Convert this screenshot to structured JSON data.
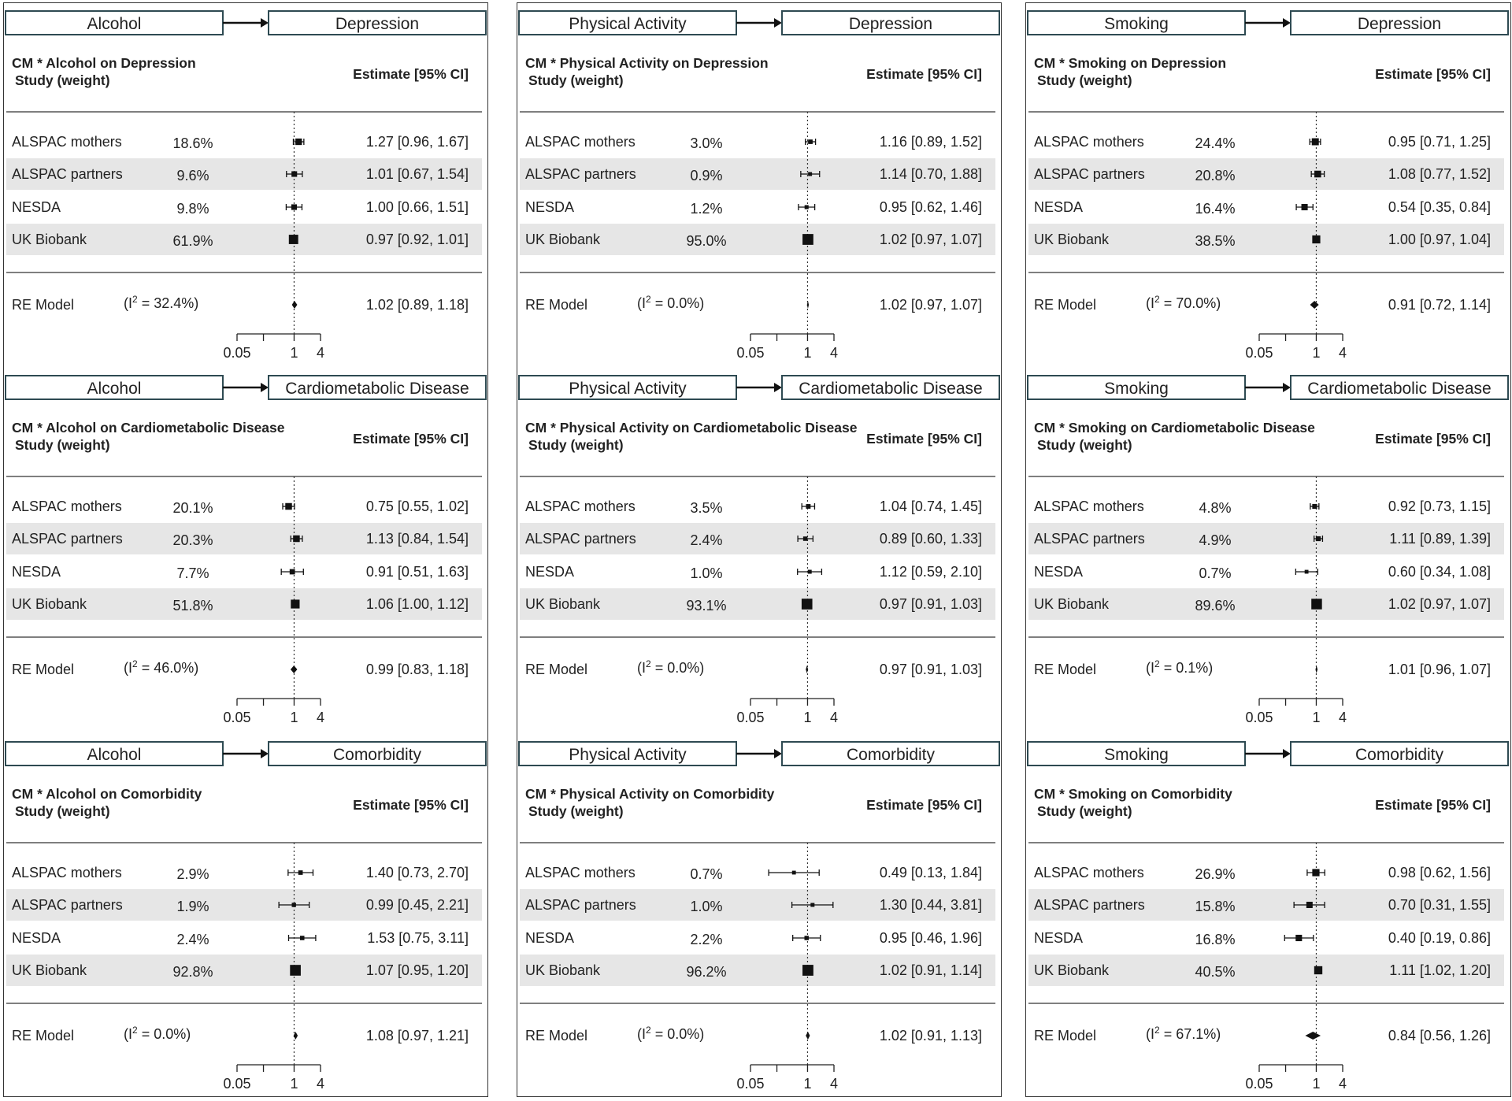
{
  "chart_data": [
    {
      "type": "forest",
      "exposure": "Alcohol",
      "outcome": "Depression",
      "title": "CM * Alcohol on Depression",
      "study_header": "Study (weight)",
      "estimate_header": "Estimate [95% CI]",
      "studies": [
        {
          "name": "ALSPAC mothers",
          "weight": "18.6%",
          "est": 1.27,
          "lo": 0.96,
          "hi": 1.67,
          "label": "1.27 [0.96, 1.67]"
        },
        {
          "name": "ALSPAC partners",
          "weight": "9.6%",
          "est": 1.01,
          "lo": 0.67,
          "hi": 1.54,
          "label": "1.01 [0.67, 1.54]"
        },
        {
          "name": "NESDA",
          "weight": "9.8%",
          "est": 1.0,
          "lo": 0.66,
          "hi": 1.51,
          "label": "1.00 [0.66, 1.51]"
        },
        {
          "name": "UK Biobank",
          "weight": "61.9%",
          "est": 0.97,
          "lo": 0.92,
          "hi": 1.01,
          "label": "0.97 [0.92, 1.01]"
        }
      ],
      "re_model": {
        "name": "RE Model",
        "i2": "= 32.4%)",
        "est": 1.02,
        "lo": 0.89,
        "hi": 1.18,
        "label": "1.02 [0.89, 1.18]"
      },
      "ticks": [
        "0.05",
        "1",
        "4"
      ]
    },
    {
      "type": "forest",
      "exposure": "Alcohol",
      "outcome": "Cardiometabolic Disease",
      "title": "CM * Alcohol on Cardiometabolic Disease",
      "study_header": "Study (weight)",
      "estimate_header": "Estimate [95% CI]",
      "studies": [
        {
          "name": "ALSPAC mothers",
          "weight": "20.1%",
          "est": 0.75,
          "lo": 0.55,
          "hi": 1.02,
          "label": "0.75 [0.55, 1.02]"
        },
        {
          "name": "ALSPAC partners",
          "weight": "20.3%",
          "est": 1.13,
          "lo": 0.84,
          "hi": 1.54,
          "label": "1.13 [0.84, 1.54]"
        },
        {
          "name": "NESDA",
          "weight": "7.7%",
          "est": 0.91,
          "lo": 0.51,
          "hi": 1.63,
          "label": "0.91 [0.51, 1.63]"
        },
        {
          "name": "UK Biobank",
          "weight": "51.8%",
          "est": 1.06,
          "lo": 1.0,
          "hi": 1.12,
          "label": "1.06 [1.00, 1.12]"
        }
      ],
      "re_model": {
        "name": "RE Model",
        "i2": "= 46.0%)",
        "est": 0.99,
        "lo": 0.83,
        "hi": 1.18,
        "label": "0.99 [0.83, 1.18]"
      },
      "ticks": [
        "0.05",
        "1",
        "4"
      ]
    },
    {
      "type": "forest",
      "exposure": "Alcohol",
      "outcome": "Comorbidity",
      "title": "CM * Alcohol on Comorbidity",
      "study_header": "Study (weight)",
      "estimate_header": "Estimate [95% CI]",
      "studies": [
        {
          "name": "ALSPAC mothers",
          "weight": "2.9%",
          "est": 1.4,
          "lo": 0.73,
          "hi": 2.7,
          "label": "1.40 [0.73, 2.70]"
        },
        {
          "name": "ALSPAC partners",
          "weight": "1.9%",
          "est": 0.99,
          "lo": 0.45,
          "hi": 2.21,
          "label": "0.99 [0.45, 2.21]"
        },
        {
          "name": "NESDA",
          "weight": "2.4%",
          "est": 1.53,
          "lo": 0.75,
          "hi": 3.11,
          "label": "1.53 [0.75, 3.11]"
        },
        {
          "name": "UK Biobank",
          "weight": "92.8%",
          "est": 1.07,
          "lo": 0.95,
          "hi": 1.2,
          "label": "1.07 [0.95, 1.20]"
        }
      ],
      "re_model": {
        "name": "RE Model",
        "i2": "= 0.0%)",
        "est": 1.08,
        "lo": 0.97,
        "hi": 1.21,
        "label": "1.08 [0.97, 1.21]"
      },
      "ticks": [
        "0.05",
        "1",
        "4"
      ]
    },
    {
      "type": "forest",
      "exposure": "Physical Activity",
      "outcome": "Depression",
      "title": "CM * Physical Activity on Depression",
      "study_header": "Study (weight)",
      "estimate_header": "Estimate [95% CI]",
      "studies": [
        {
          "name": "ALSPAC mothers",
          "weight": "3.0%",
          "est": 1.16,
          "lo": 0.89,
          "hi": 1.52,
          "label": "1.16 [0.89, 1.52]"
        },
        {
          "name": "ALSPAC partners",
          "weight": "0.9%",
          "est": 1.14,
          "lo": 0.7,
          "hi": 1.88,
          "label": "1.14 [0.70, 1.88]"
        },
        {
          "name": "NESDA",
          "weight": "1.2%",
          "est": 0.95,
          "lo": 0.62,
          "hi": 1.46,
          "label": "0.95 [0.62, 1.46]"
        },
        {
          "name": "UK Biobank",
          "weight": "95.0%",
          "est": 1.02,
          "lo": 0.97,
          "hi": 1.07,
          "label": "1.02 [0.97, 1.07]"
        }
      ],
      "re_model": {
        "name": "RE Model",
        "i2": "= 0.0%)",
        "est": 1.02,
        "lo": 0.97,
        "hi": 1.07,
        "label": "1.02 [0.97, 1.07]"
      },
      "ticks": [
        "0.05",
        "1",
        "4"
      ]
    },
    {
      "type": "forest",
      "exposure": "Physical Activity",
      "outcome": "Cardiometabolic Disease",
      "title": "CM * Physical Activity on Cardiometabolic Disease",
      "study_header": "Study (weight)",
      "estimate_header": "Estimate [95% CI]",
      "studies": [
        {
          "name": "ALSPAC mothers",
          "weight": "3.5%",
          "est": 1.04,
          "lo": 0.74,
          "hi": 1.45,
          "label": "1.04 [0.74, 1.45]"
        },
        {
          "name": "ALSPAC partners",
          "weight": "2.4%",
          "est": 0.89,
          "lo": 0.6,
          "hi": 1.33,
          "label": "0.89 [0.60, 1.33]"
        },
        {
          "name": "NESDA",
          "weight": "1.0%",
          "est": 1.12,
          "lo": 0.59,
          "hi": 2.1,
          "label": "1.12 [0.59, 2.10]"
        },
        {
          "name": "UK Biobank",
          "weight": "93.1%",
          "est": 0.97,
          "lo": 0.91,
          "hi": 1.03,
          "label": "0.97 [0.91, 1.03]"
        }
      ],
      "re_model": {
        "name": "RE Model",
        "i2": "= 0.0%)",
        "est": 0.97,
        "lo": 0.91,
        "hi": 1.03,
        "label": "0.97 [0.91, 1.03]"
      },
      "ticks": [
        "0.05",
        "1",
        "4"
      ]
    },
    {
      "type": "forest",
      "exposure": "Physical Activity",
      "outcome": "Comorbidity",
      "title": "CM * Physical Activity on Comorbidity",
      "study_header": "Study (weight)",
      "estimate_header": "Estimate [95% CI]",
      "studies": [
        {
          "name": "ALSPAC mothers",
          "weight": "0.7%",
          "est": 0.49,
          "lo": 0.13,
          "hi": 1.84,
          "label": "0.49 [0.13, 1.84]"
        },
        {
          "name": "ALSPAC partners",
          "weight": "1.0%",
          "est": 1.3,
          "lo": 0.44,
          "hi": 3.81,
          "label": "1.30 [0.44, 3.81]"
        },
        {
          "name": "NESDA",
          "weight": "2.2%",
          "est": 0.95,
          "lo": 0.46,
          "hi": 1.96,
          "label": "0.95 [0.46, 1.96]"
        },
        {
          "name": "UK Biobank",
          "weight": "96.2%",
          "est": 1.02,
          "lo": 0.91,
          "hi": 1.14,
          "label": "1.02 [0.91, 1.14]"
        }
      ],
      "re_model": {
        "name": "RE Model",
        "i2": "= 0.0%)",
        "est": 1.02,
        "lo": 0.91,
        "hi": 1.13,
        "label": "1.02 [0.91, 1.13]"
      },
      "ticks": [
        "0.05",
        "1",
        "4"
      ]
    },
    {
      "type": "forest",
      "exposure": "Smoking",
      "outcome": "Depression",
      "title": "CM * Smoking on Depression",
      "study_header": "Study (weight)",
      "estimate_header": "Estimate [95% CI]",
      "studies": [
        {
          "name": "ALSPAC mothers",
          "weight": "24.4%",
          "est": 0.95,
          "lo": 0.71,
          "hi": 1.25,
          "label": "0.95 [0.71, 1.25]"
        },
        {
          "name": "ALSPAC partners",
          "weight": "20.8%",
          "est": 1.08,
          "lo": 0.77,
          "hi": 1.52,
          "label": "1.08 [0.77, 1.52]"
        },
        {
          "name": "NESDA",
          "weight": "16.4%",
          "est": 0.54,
          "lo": 0.35,
          "hi": 0.84,
          "label": "0.54 [0.35, 0.84]"
        },
        {
          "name": "UK Biobank",
          "weight": "38.5%",
          "est": 1.0,
          "lo": 0.97,
          "hi": 1.04,
          "label": "1.00 [0.97, 1.04]"
        }
      ],
      "re_model": {
        "name": "RE Model",
        "i2": "= 70.0%)",
        "est": 0.91,
        "lo": 0.72,
        "hi": 1.14,
        "label": "0.91 [0.72, 1.14]"
      },
      "ticks": [
        "0.05",
        "1",
        "4"
      ]
    },
    {
      "type": "forest",
      "exposure": "Smoking",
      "outcome": "Cardiometabolic Disease",
      "title": "CM * Smoking on Cardiometabolic Disease",
      "study_header": "Study (weight)",
      "estimate_header": "Estimate [95% CI]",
      "studies": [
        {
          "name": "ALSPAC mothers",
          "weight": "4.8%",
          "est": 0.92,
          "lo": 0.73,
          "hi": 1.15,
          "label": "0.92 [0.73, 1.15]"
        },
        {
          "name": "ALSPAC partners",
          "weight": "4.9%",
          "est": 1.11,
          "lo": 0.89,
          "hi": 1.39,
          "label": "1.11 [0.89, 1.39]"
        },
        {
          "name": "NESDA",
          "weight": "0.7%",
          "est": 0.6,
          "lo": 0.34,
          "hi": 1.08,
          "label": "0.60 [0.34, 1.08]"
        },
        {
          "name": "UK Biobank",
          "weight": "89.6%",
          "est": 1.02,
          "lo": 0.97,
          "hi": 1.07,
          "label": "1.02 [0.97, 1.07]"
        }
      ],
      "re_model": {
        "name": "RE Model",
        "i2": "= 0.1%)",
        "est": 1.01,
        "lo": 0.96,
        "hi": 1.07,
        "label": "1.01 [0.96, 1.07]"
      },
      "ticks": [
        "0.05",
        "1",
        "4"
      ]
    },
    {
      "type": "forest",
      "exposure": "Smoking",
      "outcome": "Comorbidity",
      "title": "CM * Smoking on Comorbidity",
      "study_header": "Study (weight)",
      "estimate_header": "Estimate [95% CI]",
      "studies": [
        {
          "name": "ALSPAC mothers",
          "weight": "26.9%",
          "est": 0.98,
          "lo": 0.62,
          "hi": 1.56,
          "label": "0.98 [0.62, 1.56]"
        },
        {
          "name": "ALSPAC partners",
          "weight": "15.8%",
          "est": 0.7,
          "lo": 0.31,
          "hi": 1.55,
          "label": "0.70 [0.31, 1.55]"
        },
        {
          "name": "NESDA",
          "weight": "16.8%",
          "est": 0.4,
          "lo": 0.19,
          "hi": 0.86,
          "label": "0.40 [0.19, 0.86]"
        },
        {
          "name": "UK Biobank",
          "weight": "40.5%",
          "est": 1.11,
          "lo": 1.02,
          "hi": 1.2,
          "label": "1.11 [1.02, 1.20]"
        }
      ],
      "re_model": {
        "name": "RE Model",
        "i2": "= 67.1%)",
        "est": 0.84,
        "lo": 0.56,
        "hi": 1.26,
        "label": "0.84 [0.56, 1.26]"
      },
      "ticks": [
        "0.05",
        "1",
        "4"
      ]
    }
  ],
  "colors": {
    "box_border": "#2e4a52",
    "shade": "#e6e6e6",
    "ink": "#111111"
  }
}
